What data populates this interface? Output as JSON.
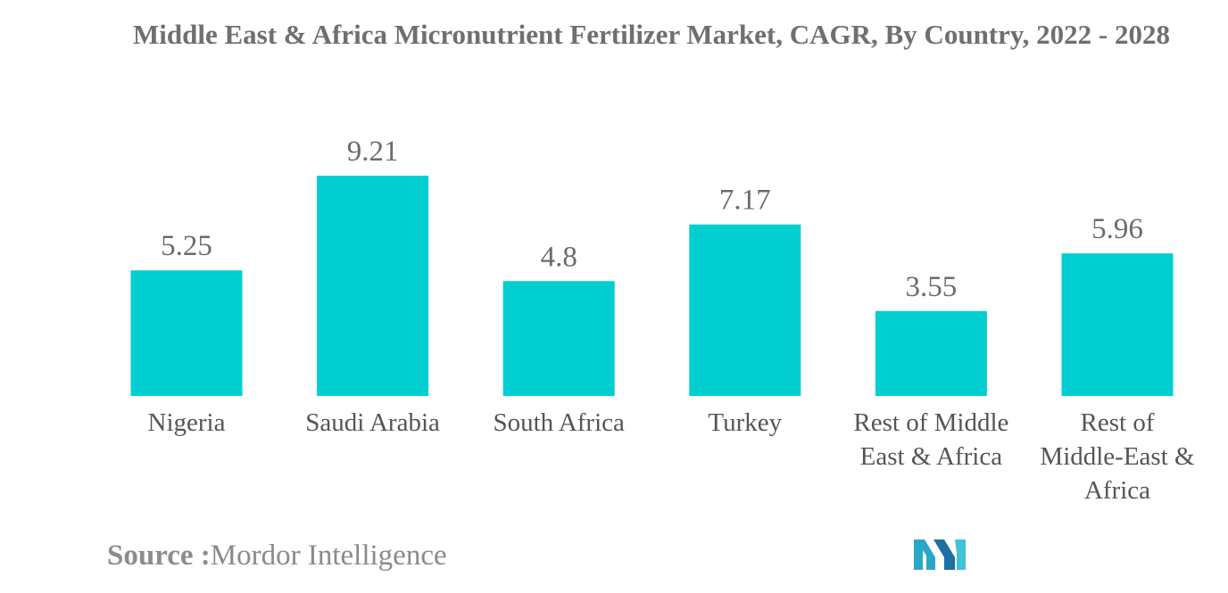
{
  "title": "Middle East & Africa Micronutrient Fertilizer Market, CAGR, By Country, 2022 - 2028",
  "source": {
    "label": "Source :",
    "name": "Mordor Intelligence"
  },
  "colors": {
    "bar": "#00CED1",
    "text": "#6b6b6b"
  },
  "logo_icon": "mordor-intelligence-logo-icon",
  "chart_data": {
    "type": "bar",
    "title": "Middle East & Africa Micronutrient Fertilizer Market, CAGR, By Country, 2022 - 2028",
    "categories": [
      "Nigeria",
      "Saudi Arabia",
      "South Africa",
      "Turkey",
      "Rest of Middle East & Africa",
      "Rest of Middle-East & Africa"
    ],
    "category_display": [
      "Nigeria",
      "Saudi Arabia",
      "South Africa",
      "Turkey",
      "Rest of Middle\nEast & Africa",
      "Rest of\nMiddle-East &\nAfrica"
    ],
    "values": [
      5.25,
      9.21,
      4.8,
      7.17,
      3.55,
      5.96
    ],
    "value_labels": [
      "5.25",
      "9.21",
      "4.8",
      "7.17",
      "3.55",
      "5.96"
    ],
    "xlabel": "",
    "ylabel": "",
    "ylim": [
      0,
      9.21
    ],
    "grid": false,
    "legend": "none"
  }
}
